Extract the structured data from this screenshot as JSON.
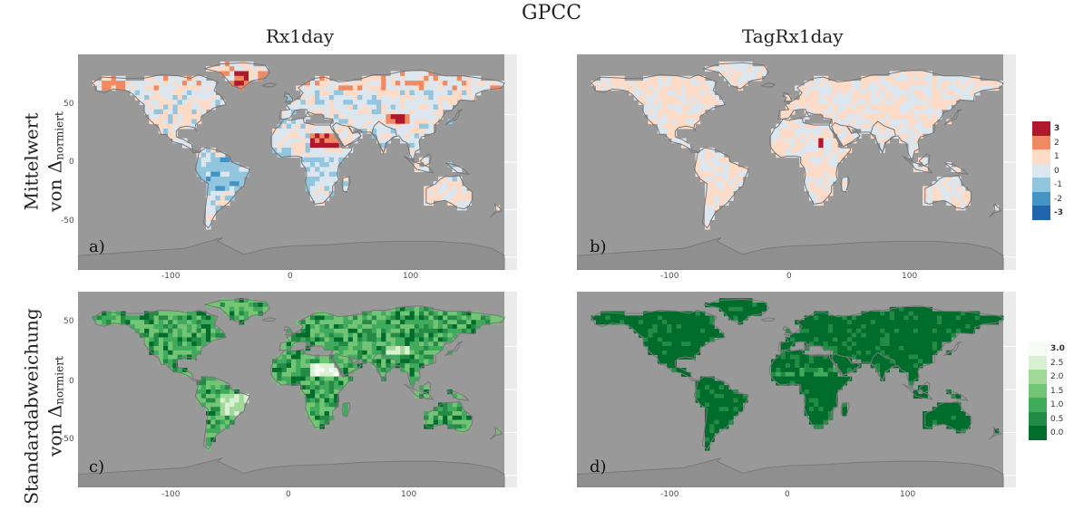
{
  "title": "GPCC",
  "columns": [
    "Rx1day",
    "TagRx1day"
  ],
  "rows": [
    {
      "line1": "Mittelwert",
      "line2": "von Δ",
      "sub": "normiert"
    },
    {
      "line1": "Standardabweichung",
      "line2": "von Δ",
      "sub": "normiert"
    }
  ],
  "panels": [
    {
      "id": "a",
      "label": "a)"
    },
    {
      "id": "b",
      "label": "b)"
    },
    {
      "id": "c",
      "label": "c)"
    },
    {
      "id": "d",
      "label": "d)"
    }
  ],
  "axes": {
    "x_ticks": [
      "-100",
      "0",
      "100"
    ],
    "y_ticks": [
      "50",
      "0",
      "-50"
    ]
  },
  "legend_mean": {
    "labels": [
      "3",
      "2",
      "1",
      "0",
      "-1",
      "-2",
      "-3"
    ],
    "colors": [
      "#b2182b",
      "#ef8a62",
      "#fddbc7",
      "#dce6ef",
      "#92c5de",
      "#4393c3",
      "#2166ac"
    ]
  },
  "legend_sd": {
    "labels": [
      "3.0",
      "2.5",
      "2.0",
      "1.5",
      "1.0",
      "0.5",
      "0.0"
    ],
    "colors": [
      "#f7fcf5",
      "#d9f0d3",
      "#a1d99b",
      "#74c476",
      "#41ab5d",
      "#238b45",
      "#006d2c"
    ]
  },
  "colors": {
    "ocean": "#999999",
    "panel_bg": "#ebebeb",
    "border": "#777777",
    "antarctica": "#8f8f8f"
  }
}
